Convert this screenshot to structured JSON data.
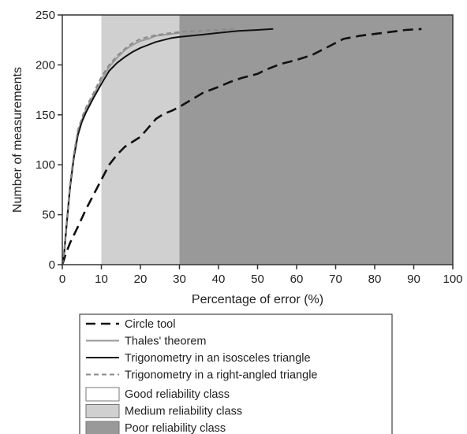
{
  "chart_data": {
    "type": "line",
    "xlabel": "Percentage of error (%)",
    "ylabel": "Number of measurements",
    "xlim": [
      0,
      100
    ],
    "ylim": [
      0,
      250
    ],
    "x_ticks": [
      0,
      10,
      20,
      30,
      40,
      50,
      60,
      70,
      80,
      90,
      100
    ],
    "y_ticks": [
      0,
      50,
      100,
      150,
      200,
      250
    ],
    "grid": false,
    "legend_placement": "below",
    "bands": [
      {
        "name": "Good reliability class",
        "from": 0,
        "to": 10,
        "color": "#ffffff"
      },
      {
        "name": "Medium reliability class",
        "from": 10,
        "to": 30,
        "color": "#d0d0d0"
      },
      {
        "name": "Poor reliability class",
        "from": 30,
        "to": 100,
        "color": "#999999"
      }
    ],
    "series": [
      {
        "name": "Circle tool",
        "color": "#111111",
        "style": "dashed",
        "x": [
          0,
          1,
          2,
          4,
          6,
          8,
          10,
          12,
          14,
          16,
          18,
          20,
          22,
          24,
          26,
          28,
          30,
          33,
          36,
          40,
          43,
          46,
          50,
          52,
          56,
          60,
          64,
          68,
          72,
          76,
          80,
          84,
          88,
          92
        ],
        "y": [
          0,
          12,
          22,
          38,
          55,
          70,
          85,
          100,
          110,
          118,
          123,
          128,
          137,
          146,
          151,
          154,
          158,
          165,
          172,
          178,
          183,
          187,
          191,
          195,
          201,
          205,
          210,
          218,
          226,
          229,
          231,
          233,
          235,
          236
        ]
      },
      {
        "name": "Thales' theorem",
        "color": "#9a9a9a",
        "style": "solid",
        "x": [
          0,
          0.5,
          1,
          2,
          3,
          4,
          5,
          6,
          8,
          10,
          12,
          14,
          16,
          18,
          20,
          22,
          24,
          26,
          28,
          30,
          35,
          40,
          45,
          50,
          54
        ],
        "y": [
          0,
          15,
          40,
          80,
          110,
          133,
          145,
          155,
          170,
          185,
          198,
          207,
          215,
          220,
          224,
          226,
          229,
          230,
          231,
          232,
          234,
          235,
          236,
          236,
          236
        ]
      },
      {
        "name": "Trigonometry in an isosceles triangle",
        "color": "#111111",
        "style": "solid",
        "x": [
          0,
          0.5,
          1,
          2,
          3,
          4,
          5,
          6,
          8,
          10,
          12,
          14,
          16,
          18,
          20,
          22,
          24,
          26,
          28,
          30,
          35,
          40,
          45,
          50,
          54
        ],
        "y": [
          0,
          12,
          35,
          78,
          108,
          130,
          143,
          152,
          167,
          181,
          194,
          202,
          208,
          213,
          217,
          220,
          223,
          225,
          227,
          228,
          230,
          232,
          234,
          235,
          236
        ]
      },
      {
        "name": "Trigonometry in a right-angled triangle",
        "color": "#8a8a8a",
        "style": "dashed",
        "x": [
          0,
          0.5,
          1,
          2,
          3,
          4,
          5,
          6,
          8,
          10,
          12,
          14,
          16,
          18,
          20,
          22,
          24,
          26,
          28,
          30,
          35,
          40,
          44
        ],
        "y": [
          0,
          14,
          38,
          82,
          112,
          135,
          147,
          157,
          172,
          188,
          200,
          209,
          216,
          222,
          226,
          228,
          230,
          231,
          232,
          233,
          234,
          235,
          236
        ]
      }
    ]
  }
}
